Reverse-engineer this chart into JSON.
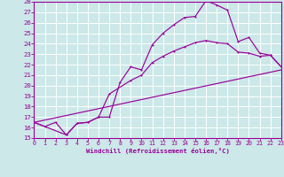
{
  "xlabel": "Windchill (Refroidissement éolien,°C)",
  "bg_color": "#cce8e8",
  "line_color": "#990099",
  "grid_color": "#ffffff",
  "xlim": [
    0,
    23
  ],
  "ylim": [
    15,
    28
  ],
  "yticks": [
    15,
    16,
    17,
    18,
    19,
    20,
    21,
    22,
    23,
    24,
    25,
    26,
    27,
    28
  ],
  "xticks": [
    0,
    1,
    2,
    3,
    4,
    5,
    6,
    7,
    8,
    9,
    10,
    11,
    12,
    13,
    14,
    15,
    16,
    17,
    18,
    19,
    20,
    21,
    22,
    23
  ],
  "line1_x": [
    0,
    1,
    2,
    3,
    4,
    5,
    6,
    7,
    8,
    9,
    10,
    11,
    12,
    13,
    14,
    15,
    16,
    17,
    18,
    19,
    20,
    21,
    22,
    23
  ],
  "line1_y": [
    16.5,
    16.1,
    16.5,
    15.3,
    16.4,
    16.5,
    17.0,
    17.0,
    20.3,
    21.8,
    21.5,
    23.9,
    25.0,
    25.8,
    26.5,
    26.6,
    28.1,
    27.7,
    27.2,
    24.2,
    24.6,
    23.1,
    22.9,
    21.8
  ],
  "line2_x": [
    0,
    3,
    4,
    5,
    6,
    7,
    9,
    10,
    11,
    12,
    13,
    14,
    15,
    16,
    17,
    18,
    19,
    20,
    21,
    22,
    23
  ],
  "line2_y": [
    16.5,
    15.3,
    16.4,
    16.5,
    17.0,
    19.2,
    20.5,
    21.0,
    22.2,
    22.8,
    23.3,
    23.7,
    24.1,
    24.3,
    24.1,
    24.0,
    23.2,
    23.1,
    22.8,
    22.9,
    21.8
  ],
  "line3_x": [
    0,
    23
  ],
  "line3_y": [
    16.5,
    21.5
  ]
}
